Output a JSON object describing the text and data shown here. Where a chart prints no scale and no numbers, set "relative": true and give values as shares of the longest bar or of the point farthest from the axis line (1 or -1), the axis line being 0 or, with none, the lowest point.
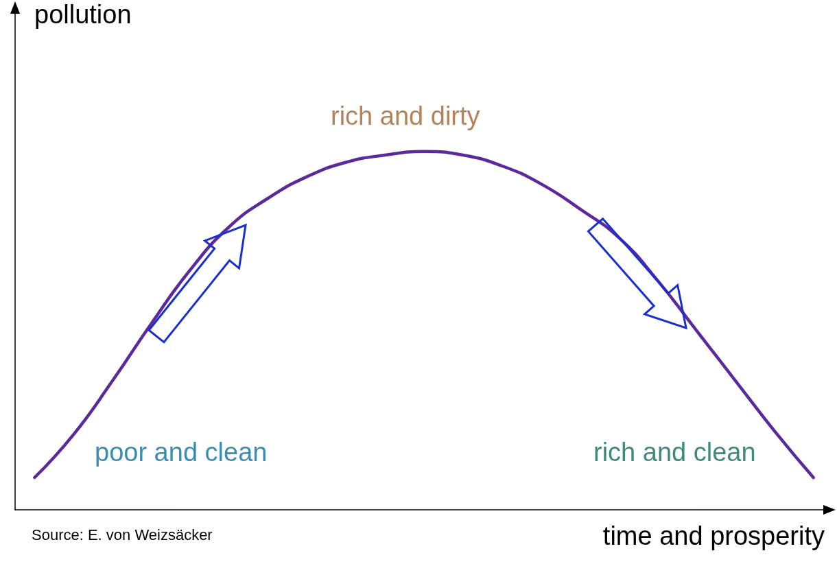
{
  "chart_data": {
    "type": "line",
    "relative": true,
    "ylabel": "pollution",
    "xlabel": "time and prosperity",
    "categories": [
      null,
      null,
      null,
      null,
      null,
      null,
      null,
      null,
      null,
      null,
      null,
      null,
      null,
      null,
      null,
      null,
      null,
      null,
      null,
      null,
      null
    ],
    "series": [
      {
        "color": "#5b2a9a",
        "values": [
          0.09,
          0.21,
          0.36,
          0.52,
          0.67,
          0.79,
          0.87,
          0.93,
          0.97,
          0.99,
          1,
          0.99,
          0.96,
          0.91,
          0.84,
          0.76,
          0.64,
          0.5,
          0.36,
          0.22,
          0.09
        ]
      }
    ],
    "annotations": [
      "rich and dirty",
      "poor and clean",
      "rich and clean",
      "Source: E. von Weizsäcker"
    ],
    "grid": false,
    "marker": "none",
    "line_style": "solid"
  }
}
